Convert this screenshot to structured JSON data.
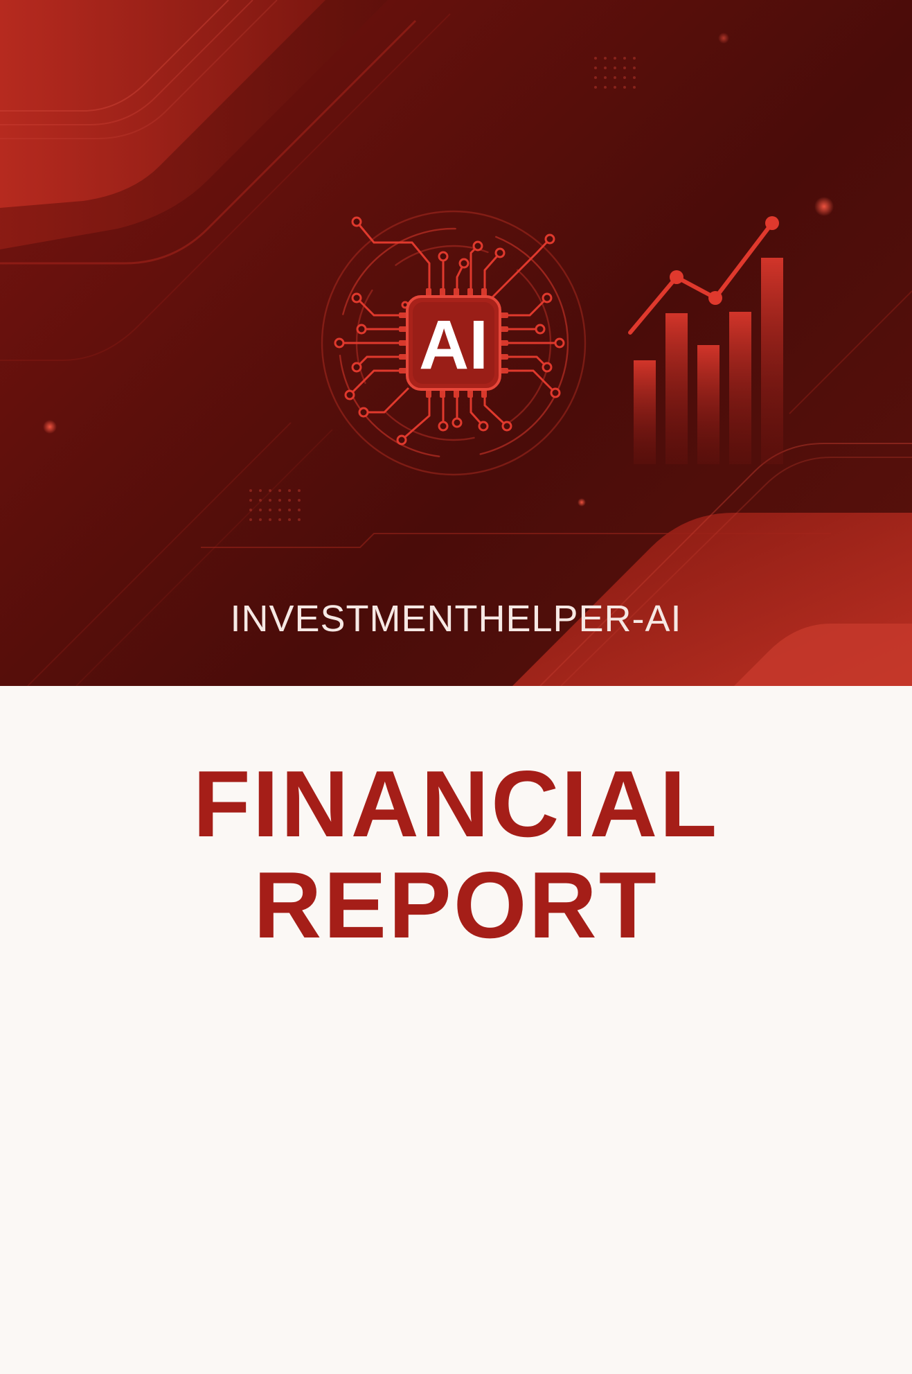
{
  "cover": {
    "brand": "INVESTMENTHELPER-AI",
    "chip_label": "AI",
    "title_line1": "FINANCIAL",
    "title_line2": "REPORT"
  },
  "colors": {
    "hero_dark": "#4a0c09",
    "hero_red": "#b4281f",
    "accent_red": "#e0392d",
    "title_red": "#a51e18",
    "paper": "#fbf8f5"
  },
  "icons": [
    "ai-chip-icon",
    "growth-chart-icon"
  ]
}
